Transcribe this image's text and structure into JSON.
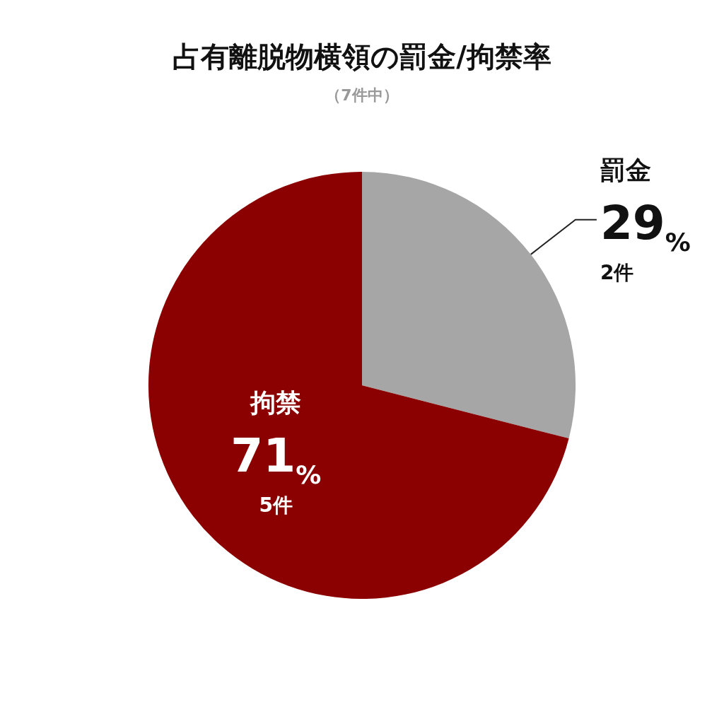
{
  "chart_data": {
    "type": "pie",
    "title": "占有離脱物横領の罰金/拘禁率",
    "subtitle": "（7件中）",
    "categories": [
      "罰金",
      "拘禁"
    ],
    "values": [
      29,
      71
    ],
    "colors": [
      "#a6a6a6",
      "#8b0000"
    ],
    "value_labels": [
      "29%\n2件",
      "71%\n5件"
    ],
    "legend": false
  }
}
